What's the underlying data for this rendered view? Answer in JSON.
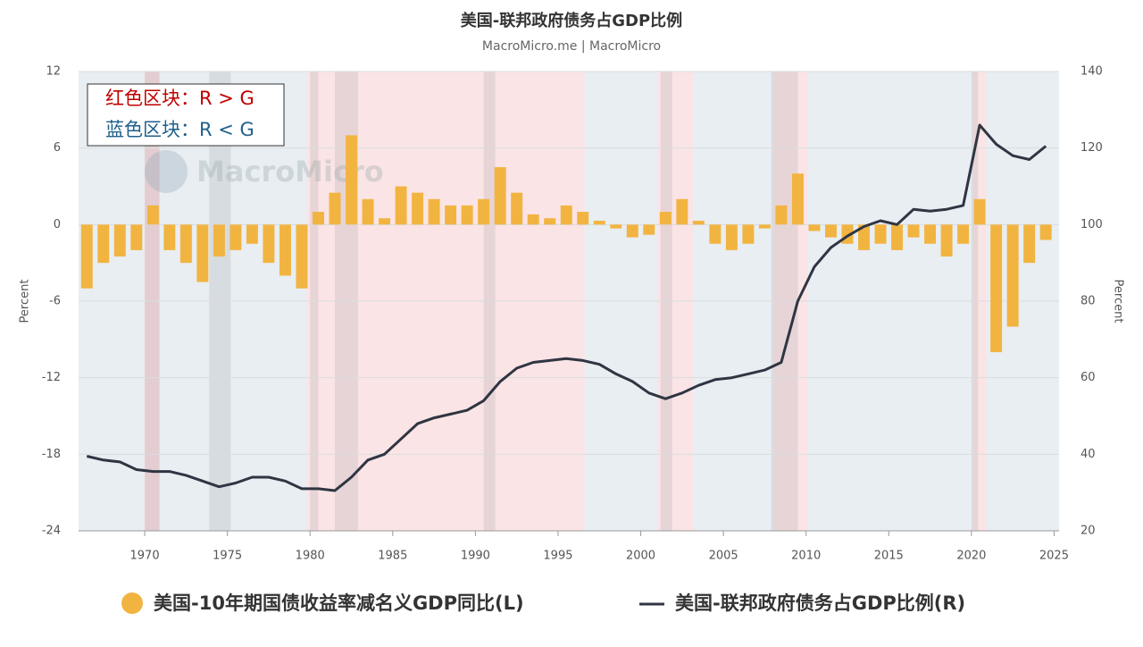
{
  "chart_data": {
    "type": "combo",
    "title": "美国-联邦政府债务占GDP比例",
    "subtitle": "MacroMicro.me | MacroMicro",
    "watermark": "MacroMicro",
    "annotations": [
      {
        "text": "红色区块：R > G",
        "color": "#c00000"
      },
      {
        "text": "蓝色区块：R < G",
        "color": "#1f5f8b"
      }
    ],
    "ylabel": "Percent",
    "y2label": "Percent",
    "xlim": [
      1966,
      2025.3
    ],
    "xticks": [
      1970,
      1975,
      1980,
      1985,
      1990,
      1995,
      2000,
      2005,
      2010,
      2015,
      2020,
      2025
    ],
    "ylim": [
      -24,
      12
    ],
    "yticks": [
      -24,
      -18,
      -12,
      -6,
      0,
      6,
      12
    ],
    "y2lim": [
      20,
      140
    ],
    "y2ticks": [
      20,
      40,
      60,
      80,
      100,
      120,
      140
    ],
    "grid": true,
    "regions": [
      {
        "start": 1966,
        "end": 1970,
        "color": "#e8eef2"
      },
      {
        "start": 1970,
        "end": 1970.9,
        "color": "#f6dcde"
      },
      {
        "start": 1970.9,
        "end": 1979.8,
        "color": "#e8eef2"
      },
      {
        "start": 1979.8,
        "end": 1996.6,
        "color": "#fbe4e5"
      },
      {
        "start": 1996.6,
        "end": 2001,
        "color": "#e8eef2"
      },
      {
        "start": 2001,
        "end": 2003.2,
        "color": "#fbe4e5"
      },
      {
        "start": 2003.2,
        "end": 2008,
        "color": "#e8eef2"
      },
      {
        "start": 2008,
        "end": 2010.1,
        "color": "#fbe4e5"
      },
      {
        "start": 2010.1,
        "end": 2020.1,
        "color": "#e8eef2"
      },
      {
        "start": 2020.1,
        "end": 2020.9,
        "color": "#fbe4e5"
      },
      {
        "start": 2020.9,
        "end": 2025.3,
        "color": "#e8eef2"
      }
    ],
    "recessions": [
      {
        "start": 1970,
        "end": 1970.9
      },
      {
        "start": 1973.9,
        "end": 1975.2
      },
      {
        "start": 1980,
        "end": 1980.5
      },
      {
        "start": 1981.5,
        "end": 1982.9
      },
      {
        "start": 1990.5,
        "end": 1991.2
      },
      {
        "start": 2001.2,
        "end": 2001.9
      },
      {
        "start": 2007.9,
        "end": 2009.5
      },
      {
        "start": 2020,
        "end": 2020.4
      }
    ],
    "recession_color": "rgba(120,120,130,0.15)",
    "x": [
      1966.5,
      1967.5,
      1968.5,
      1969.5,
      1970.5,
      1971.5,
      1972.5,
      1973.5,
      1974.5,
      1975.5,
      1976.5,
      1977.5,
      1978.5,
      1979.5,
      1980.5,
      1981.5,
      1982.5,
      1983.5,
      1984.5,
      1985.5,
      1986.5,
      1987.5,
      1988.5,
      1989.5,
      1990.5,
      1991.5,
      1992.5,
      1993.5,
      1994.5,
      1995.5,
      1996.5,
      1997.5,
      1998.5,
      1999.5,
      2000.5,
      2001.5,
      2002.5,
      2003.5,
      2004.5,
      2005.5,
      2006.5,
      2007.5,
      2008.5,
      2009.5,
      2010.5,
      2011.5,
      2012.5,
      2013.5,
      2014.5,
      2015.5,
      2016.5,
      2017.5,
      2018.5,
      2019.5,
      2020.5,
      2021.5,
      2022.5,
      2023.5,
      2024.5
    ],
    "series": [
      {
        "name": "美国-10年期国债收益率减名义GDP同比(L)",
        "type": "bar",
        "axis": "y",
        "color": "#f2b440",
        "values": [
          -5,
          -3,
          -2.5,
          -2,
          1.5,
          -2,
          -3,
          -4.5,
          -2.5,
          -2,
          -1.5,
          -3,
          -4,
          -5,
          1,
          2.5,
          7,
          2,
          0.5,
          3,
          2.5,
          2,
          1.5,
          1.5,
          2,
          4.5,
          2.5,
          0.8,
          0.5,
          1.5,
          1,
          0.3,
          -0.3,
          -1,
          -0.8,
          1,
          2,
          0.3,
          -1.5,
          -2,
          -1.5,
          -0.3,
          1.5,
          4,
          -0.5,
          -1,
          -1.5,
          -2,
          -1.5,
          -2,
          -1,
          -1.5,
          -2.5,
          -1.5,
          2,
          -10,
          -8,
          -3,
          -1.2
        ]
      },
      {
        "name": "美国-联邦政府债务占GDP比例(R)",
        "type": "line",
        "axis": "y2",
        "color": "#2f3542",
        "values": [
          39.5,
          38.5,
          38,
          36,
          35.5,
          35.5,
          34.5,
          33,
          31.5,
          32.5,
          34,
          34,
          33,
          31,
          31,
          30.5,
          34,
          38.5,
          40,
          44,
          48,
          49.5,
          50.5,
          51.5,
          54,
          59,
          62.5,
          64,
          64.5,
          65,
          64.5,
          63.5,
          61,
          59,
          56,
          54.5,
          56,
          58,
          59.5,
          60,
          61,
          62,
          64,
          80,
          89,
          94,
          97,
          99.5,
          101,
          100,
          104,
          103.5,
          104,
          105,
          126,
          121,
          118,
          117,
          120.5
        ]
      }
    ]
  }
}
